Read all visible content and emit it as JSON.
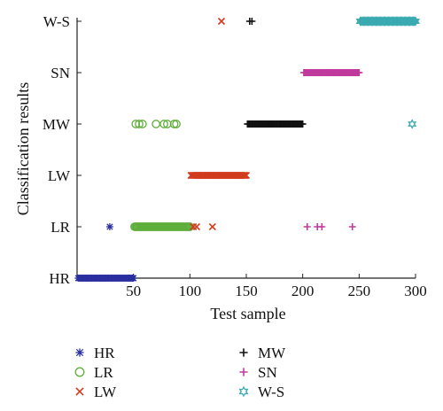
{
  "chart_data": {
    "type": "scatter",
    "xlabel": "Test sample",
    "ylabel": "Classification results",
    "xlim": [
      0,
      300
    ],
    "xticks": [
      50,
      100,
      150,
      200,
      250,
      300
    ],
    "categories": [
      "HR",
      "LR",
      "LW",
      "MW",
      "SN",
      "W-S"
    ],
    "grid": false,
    "legend_position": "bottom",
    "series": [
      {
        "name": "HR",
        "marker": "asterisk",
        "color": "#2b2f9e",
        "points": [
          {
            "range": [
              1,
              50
            ],
            "category": "HR"
          },
          {
            "x": 29,
            "category": "LR"
          }
        ]
      },
      {
        "name": "LR",
        "marker": "circle",
        "color": "#5fae3c",
        "points": [
          {
            "range": [
              51,
              100
            ],
            "category": "LR"
          },
          {
            "x": 52,
            "category": "MW"
          },
          {
            "x": 55,
            "category": "MW"
          },
          {
            "x": 58,
            "category": "MW"
          },
          {
            "x": 70,
            "category": "MW"
          },
          {
            "x": 77,
            "category": "MW"
          },
          {
            "x": 80,
            "category": "MW"
          },
          {
            "x": 86,
            "category": "MW"
          },
          {
            "x": 88,
            "category": "MW"
          }
        ]
      },
      {
        "name": "LW",
        "marker": "x",
        "color": "#d23b1f",
        "points": [
          {
            "range": [
              101,
              150
            ],
            "category": "LW"
          },
          {
            "x": 103,
            "category": "LR"
          },
          {
            "x": 106,
            "category": "LR"
          },
          {
            "x": 120,
            "category": "LR"
          },
          {
            "x": 128,
            "category": "W-S"
          }
        ]
      },
      {
        "name": "MW",
        "marker": "plus",
        "color": "#111111",
        "points": [
          {
            "range": [
              151,
              200
            ],
            "category": "MW"
          },
          {
            "x": 153,
            "category": "W-S"
          },
          {
            "x": 155,
            "category": "W-S"
          }
        ]
      },
      {
        "name": "SN",
        "marker": "plus",
        "color": "#c03a9e",
        "points": [
          {
            "range": [
              201,
              250
            ],
            "category": "SN"
          },
          {
            "x": 204,
            "category": "LR"
          },
          {
            "x": 213,
            "category": "LR"
          },
          {
            "x": 217,
            "category": "LR"
          },
          {
            "x": 244,
            "category": "LR"
          }
        ]
      },
      {
        "name": "W-S",
        "marker": "star",
        "color": "#3aaab0",
        "points": [
          {
            "range": [
              251,
              300
            ],
            "category": "W-S"
          },
          {
            "x": 297,
            "category": "MW"
          }
        ]
      }
    ]
  },
  "legend": {
    "items": [
      {
        "label": "HR",
        "marker": "asterisk",
        "color": "#2b2f9e"
      },
      {
        "label": "LR",
        "marker": "circle",
        "color": "#5fae3c"
      },
      {
        "label": "LW",
        "marker": "x",
        "color": "#d23b1f"
      },
      {
        "label": "MW",
        "marker": "plus",
        "color": "#111111"
      },
      {
        "label": "SN",
        "marker": "plus",
        "color": "#c03a9e"
      },
      {
        "label": "W-S",
        "marker": "star",
        "color": "#3aaab0"
      }
    ]
  }
}
